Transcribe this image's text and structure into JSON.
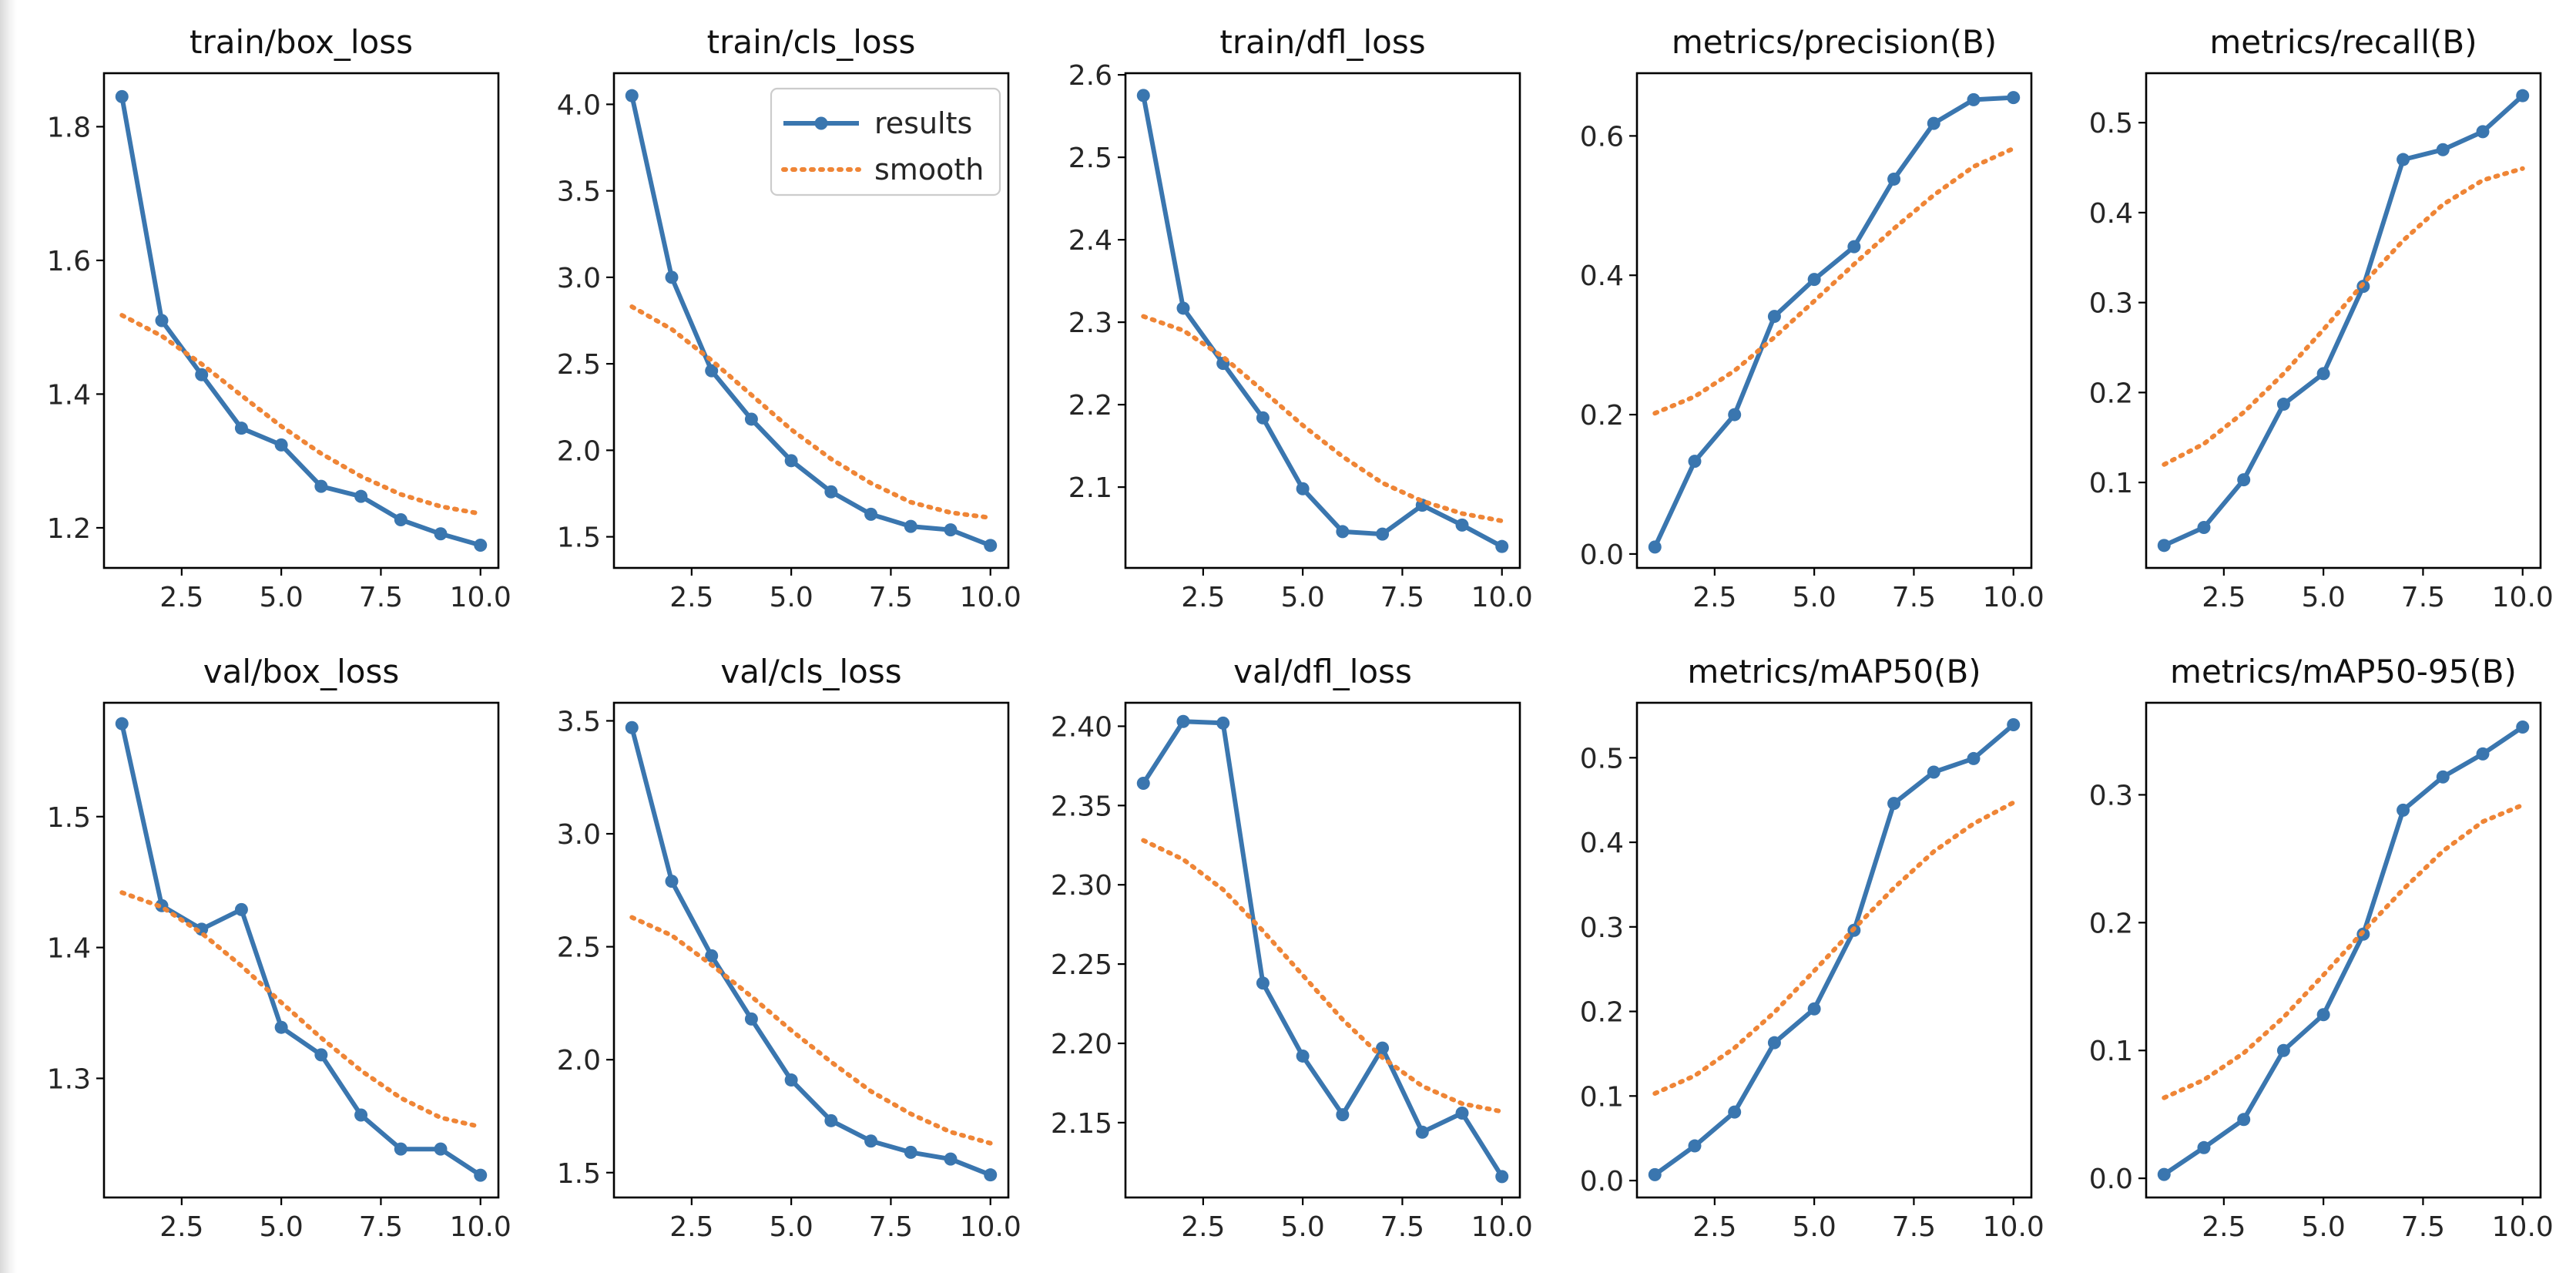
{
  "colors": {
    "results": "#3a76af",
    "smooth": "#ef8536"
  },
  "legend": {
    "results_label": "results",
    "smooth_label": "smooth"
  },
  "chart_data": [
    {
      "type": "line",
      "title": "train/box_loss",
      "x": [
        1,
        2,
        3,
        4,
        5,
        6,
        7,
        8,
        9,
        10
      ],
      "xlim": [
        0.55,
        10.45
      ],
      "xticks": [
        2.5,
        5.0,
        7.5,
        10.0
      ],
      "xtick_labels": [
        "2.5",
        "5.0",
        "7.5",
        "10.0"
      ],
      "ylim": [
        1.14,
        1.88
      ],
      "yticks": [
        1.2,
        1.4,
        1.6,
        1.8
      ],
      "ytick_labels": [
        "1.2",
        "1.4",
        "1.6",
        "1.8"
      ],
      "legend": false,
      "series": [
        {
          "name": "results",
          "values": [
            1.845,
            1.51,
            1.429,
            1.349,
            1.324,
            1.262,
            1.247,
            1.212,
            1.191,
            1.174
          ]
        },
        {
          "name": "smooth",
          "values": [
            1.518,
            1.487,
            1.445,
            1.398,
            1.352,
            1.311,
            1.277,
            1.25,
            1.232,
            1.221
          ]
        }
      ]
    },
    {
      "type": "line",
      "title": "train/cls_loss",
      "x": [
        1,
        2,
        3,
        4,
        5,
        6,
        7,
        8,
        9,
        10
      ],
      "xlim": [
        0.55,
        10.45
      ],
      "xticks": [
        2.5,
        5.0,
        7.5,
        10.0
      ],
      "xtick_labels": [
        "2.5",
        "5.0",
        "7.5",
        "10.0"
      ],
      "ylim": [
        1.32,
        4.18
      ],
      "yticks": [
        1.5,
        2.0,
        2.5,
        3.0,
        3.5,
        4.0
      ],
      "ytick_labels": [
        "1.5",
        "2.0",
        "2.5",
        "3.0",
        "3.5",
        "4.0"
      ],
      "legend": true,
      "series": [
        {
          "name": "results",
          "values": [
            4.05,
            3.0,
            2.46,
            2.18,
            1.94,
            1.76,
            1.63,
            1.56,
            1.54,
            1.45
          ]
        },
        {
          "name": "smooth",
          "values": [
            2.83,
            2.7,
            2.52,
            2.32,
            2.12,
            1.95,
            1.81,
            1.7,
            1.64,
            1.61
          ]
        }
      ]
    },
    {
      "type": "line",
      "title": "train/dfl_loss",
      "x": [
        1,
        2,
        3,
        4,
        5,
        6,
        7,
        8,
        9,
        10
      ],
      "xlim": [
        0.55,
        10.45
      ],
      "xticks": [
        2.5,
        5.0,
        7.5,
        10.0
      ],
      "xtick_labels": [
        "2.5",
        "5.0",
        "7.5",
        "10.0"
      ],
      "ylim": [
        2.002,
        2.602
      ],
      "yticks": [
        2.1,
        2.2,
        2.3,
        2.4,
        2.5,
        2.6
      ],
      "ytick_labels": [
        "2.1",
        "2.2",
        "2.3",
        "2.4",
        "2.5",
        "2.6"
      ],
      "legend": false,
      "series": [
        {
          "name": "results",
          "values": [
            2.575,
            2.317,
            2.25,
            2.184,
            2.098,
            2.046,
            2.043,
            2.078,
            2.054,
            2.028
          ]
        },
        {
          "name": "smooth",
          "values": [
            2.307,
            2.29,
            2.258,
            2.217,
            2.175,
            2.137,
            2.105,
            2.083,
            2.068,
            2.059
          ]
        }
      ]
    },
    {
      "type": "line",
      "title": "metrics/precision(B)",
      "x": [
        1,
        2,
        3,
        4,
        5,
        6,
        7,
        8,
        9,
        10
      ],
      "xlim": [
        0.55,
        10.45
      ],
      "xticks": [
        2.5,
        5.0,
        7.5,
        10.0
      ],
      "xtick_labels": [
        "2.5",
        "5.0",
        "7.5",
        "10.0"
      ],
      "ylim": [
        -0.02,
        0.69
      ],
      "yticks": [
        0.0,
        0.2,
        0.4,
        0.6
      ],
      "ytick_labels": [
        "0.0",
        "0.2",
        "0.4",
        "0.6"
      ],
      "legend": false,
      "series": [
        {
          "name": "results",
          "values": [
            0.01,
            0.133,
            0.2,
            0.341,
            0.394,
            0.441,
            0.538,
            0.618,
            0.652,
            0.655
          ]
        },
        {
          "name": "smooth",
          "values": [
            0.202,
            0.226,
            0.263,
            0.311,
            0.363,
            0.416,
            0.467,
            0.515,
            0.556,
            0.582
          ]
        }
      ]
    },
    {
      "type": "line",
      "title": "metrics/recall(B)",
      "x": [
        1,
        2,
        3,
        4,
        5,
        6,
        7,
        8,
        9,
        10
      ],
      "xlim": [
        0.55,
        10.45
      ],
      "xticks": [
        2.5,
        5.0,
        7.5,
        10.0
      ],
      "xtick_labels": [
        "2.5",
        "5.0",
        "7.5",
        "10.0"
      ],
      "ylim": [
        0.005,
        0.555
      ],
      "yticks": [
        0.1,
        0.2,
        0.3,
        0.4,
        0.5
      ],
      "ytick_labels": [
        "0.1",
        "0.2",
        "0.3",
        "0.4",
        "0.5"
      ],
      "legend": false,
      "series": [
        {
          "name": "results",
          "values": [
            0.03,
            0.05,
            0.103,
            0.187,
            0.221,
            0.318,
            0.459,
            0.47,
            0.49,
            0.53
          ]
        },
        {
          "name": "smooth",
          "values": [
            0.12,
            0.143,
            0.178,
            0.221,
            0.27,
            0.321,
            0.369,
            0.409,
            0.436,
            0.449
          ]
        }
      ]
    },
    {
      "type": "line",
      "title": "val/box_loss",
      "x": [
        1,
        2,
        3,
        4,
        5,
        6,
        7,
        8,
        9,
        10
      ],
      "xlim": [
        0.55,
        10.45
      ],
      "xticks": [
        2.5,
        5.0,
        7.5,
        10.0
      ],
      "xtick_labels": [
        "2.5",
        "5.0",
        "7.5",
        "10.0"
      ],
      "ylim": [
        1.209,
        1.587
      ],
      "yticks": [
        1.3,
        1.4,
        1.5
      ],
      "ytick_labels": [
        "1.3",
        "1.4",
        "1.5"
      ],
      "legend": false,
      "series": [
        {
          "name": "results",
          "values": [
            1.571,
            1.432,
            1.414,
            1.429,
            1.339,
            1.318,
            1.272,
            1.246,
            1.246,
            1.226
          ]
        },
        {
          "name": "smooth",
          "values": [
            1.442,
            1.431,
            1.411,
            1.386,
            1.358,
            1.331,
            1.306,
            1.285,
            1.27,
            1.263
          ]
        }
      ]
    },
    {
      "type": "line",
      "title": "val/cls_loss",
      "x": [
        1,
        2,
        3,
        4,
        5,
        6,
        7,
        8,
        9,
        10
      ],
      "xlim": [
        0.55,
        10.45
      ],
      "xticks": [
        2.5,
        5.0,
        7.5,
        10.0
      ],
      "xtick_labels": [
        "2.5",
        "5.0",
        "7.5",
        "10.0"
      ],
      "ylim": [
        1.39,
        3.58
      ],
      "yticks": [
        1.5,
        2.0,
        2.5,
        3.0,
        3.5
      ],
      "ytick_labels": [
        "1.5",
        "2.0",
        "2.5",
        "3.0",
        "3.5"
      ],
      "legend": false,
      "series": [
        {
          "name": "results",
          "values": [
            3.47,
            2.79,
            2.46,
            2.18,
            1.91,
            1.73,
            1.64,
            1.59,
            1.56,
            1.49
          ]
        },
        {
          "name": "smooth",
          "values": [
            2.63,
            2.55,
            2.42,
            2.28,
            2.13,
            1.99,
            1.86,
            1.76,
            1.68,
            1.63
          ]
        }
      ]
    },
    {
      "type": "line",
      "title": "val/dfl_loss",
      "x": [
        1,
        2,
        3,
        4,
        5,
        6,
        7,
        8,
        9,
        10
      ],
      "xlim": [
        0.55,
        10.45
      ],
      "xticks": [
        2.5,
        5.0,
        7.5,
        10.0
      ],
      "xtick_labels": [
        "2.5",
        "5.0",
        "7.5",
        "10.0"
      ],
      "ylim": [
        2.1028,
        2.4148
      ],
      "yticks": [
        2.15,
        2.2,
        2.25,
        2.3,
        2.35,
        2.4
      ],
      "ytick_labels": [
        "2.15",
        "2.20",
        "2.25",
        "2.30",
        "2.35",
        "2.40"
      ],
      "legend": false,
      "series": [
        {
          "name": "results",
          "values": [
            2.364,
            2.403,
            2.402,
            2.238,
            2.192,
            2.155,
            2.197,
            2.144,
            2.156,
            2.116
          ]
        },
        {
          "name": "smooth",
          "values": [
            2.328,
            2.316,
            2.297,
            2.271,
            2.243,
            2.215,
            2.191,
            2.173,
            2.162,
            2.157
          ]
        }
      ]
    },
    {
      "type": "line",
      "title": "metrics/mAP50(B)",
      "x": [
        1,
        2,
        3,
        4,
        5,
        6,
        7,
        8,
        9,
        10
      ],
      "xlim": [
        0.55,
        10.45
      ],
      "xticks": [
        2.5,
        5.0,
        7.5,
        10.0
      ],
      "xtick_labels": [
        "2.5",
        "5.0",
        "7.5",
        "10.0"
      ],
      "ylim": [
        -0.02,
        0.565
      ],
      "yticks": [
        0.0,
        0.1,
        0.2,
        0.3,
        0.4,
        0.5
      ],
      "ytick_labels": [
        "0.0",
        "0.1",
        "0.2",
        "0.3",
        "0.4",
        "0.5"
      ],
      "legend": false,
      "series": [
        {
          "name": "results",
          "values": [
            0.007,
            0.041,
            0.081,
            0.163,
            0.203,
            0.296,
            0.446,
            0.483,
            0.499,
            0.539
          ]
        },
        {
          "name": "smooth",
          "values": [
            0.103,
            0.124,
            0.157,
            0.199,
            0.248,
            0.298,
            0.346,
            0.389,
            0.422,
            0.447
          ]
        }
      ]
    },
    {
      "type": "line",
      "title": "metrics/mAP50-95(B)",
      "x": [
        1,
        2,
        3,
        4,
        5,
        6,
        7,
        8,
        9,
        10
      ],
      "xlim": [
        0.55,
        10.45
      ],
      "xticks": [
        2.5,
        5.0,
        7.5,
        10.0
      ],
      "xtick_labels": [
        "2.5",
        "5.0",
        "7.5",
        "10.0"
      ],
      "ylim": [
        -0.015,
        0.372
      ],
      "yticks": [
        0.0,
        0.1,
        0.2,
        0.3
      ],
      "ytick_labels": [
        "0.0",
        "0.1",
        "0.2",
        "0.3"
      ],
      "legend": false,
      "series": [
        {
          "name": "results",
          "values": [
            0.003,
            0.024,
            0.046,
            0.1,
            0.128,
            0.191,
            0.288,
            0.314,
            0.332,
            0.353
          ]
        },
        {
          "name": "smooth",
          "values": [
            0.063,
            0.077,
            0.098,
            0.126,
            0.159,
            0.193,
            0.226,
            0.256,
            0.279,
            0.292
          ]
        }
      ]
    }
  ]
}
